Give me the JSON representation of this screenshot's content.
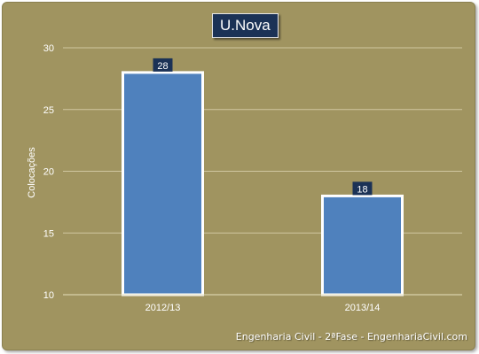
{
  "chart_data": {
    "type": "bar",
    "title": "U.Nova",
    "xlabel": "",
    "ylabel": "Colocações",
    "categories": [
      "2012/13",
      "2013/14"
    ],
    "values": [
      28,
      18
    ],
    "ylim": [
      10,
      30
    ],
    "yticks": [
      10,
      15,
      20,
      25,
      30
    ],
    "grid": true,
    "bar_color": "#4f81bd",
    "label_box_color": "#1b3256"
  },
  "footer_text": "Engenharia Civil - 2ªFase - EngenhariaCivil.com"
}
